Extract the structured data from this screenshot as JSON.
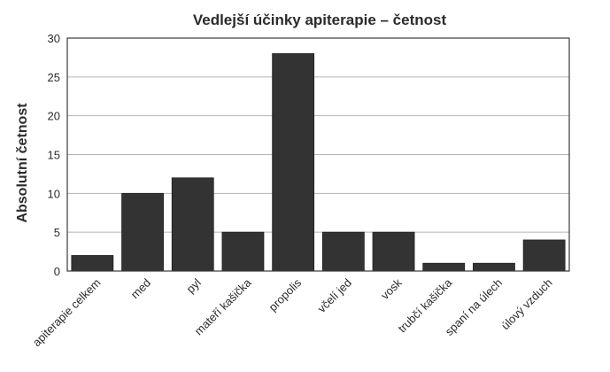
{
  "chart_data": {
    "type": "bar",
    "title": "Vedlejší účinky apiterapie – četnost",
    "xlabel": "",
    "ylabel": "Absolutní četnost",
    "categories": [
      "apiterapie celkem",
      "med",
      "pyl",
      "mateří kašička",
      "propolis",
      "včelí jed",
      "vosk",
      "trubčí kašička",
      "spaní na úlech",
      "úlový vzduch"
    ],
    "values": [
      2,
      10,
      12,
      5,
      28,
      5,
      5,
      1,
      1,
      4
    ],
    "ylim": [
      0,
      30
    ],
    "yticks": [
      0,
      5,
      10,
      15,
      20,
      25,
      30
    ],
    "grid": true,
    "legend": "none",
    "bar_color": "#333333"
  }
}
